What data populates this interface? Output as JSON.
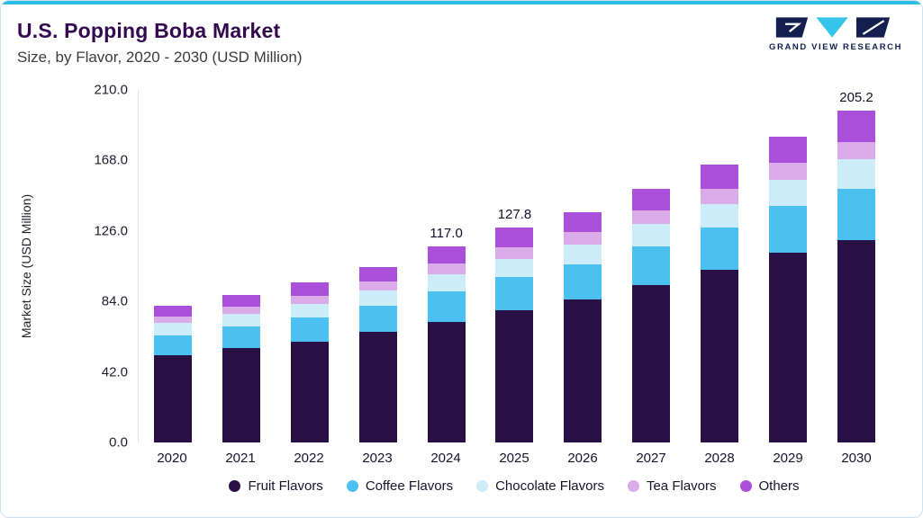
{
  "header": {
    "title": "U.S. Popping Boba Market",
    "subtitle": "Size, by Flavor, 2020 - 2030 (USD Million)",
    "logo_text": "GRAND VIEW RESEARCH"
  },
  "colors": {
    "accent": "#2bbbe3",
    "title": "#35094e",
    "logo_navy": "#13204f",
    "logo_cyan": "#35c4ea"
  },
  "chart_data": {
    "type": "bar",
    "stacked": true,
    "title": "U.S. Popping Boba Market Size, by Flavor, 2020 - 2030 (USD Million)",
    "xlabel": "",
    "ylabel": "Market Size (USD Million)",
    "ylim": [
      0,
      210
    ],
    "ytick_labels": [
      "0.0",
      "42.0",
      "84.0",
      "126.0",
      "168.0",
      "210.0"
    ],
    "grid": false,
    "legend_position": "bottom",
    "categories": [
      "2020",
      "2021",
      "2022",
      "2023",
      "2024",
      "2025",
      "2026",
      "2027",
      "2028",
      "2029",
      "2030"
    ],
    "series": [
      {
        "name": "Fruit Flavors",
        "color": "#2a1145",
        "values": [
          52,
          56,
          60,
          66,
          72,
          79,
          85,
          94,
          103,
          113,
          125
        ]
      },
      {
        "name": "Coffee Flavors",
        "color": "#4cc1f1",
        "values": [
          12,
          13,
          14.5,
          15.5,
          18,
          19.5,
          21,
          23,
          25,
          28,
          32
        ]
      },
      {
        "name": "Chocolate Flavors",
        "color": "#cdecf9",
        "values": [
          7,
          7.5,
          8,
          9,
          10,
          11,
          12,
          13,
          14,
          15.5,
          18
        ]
      },
      {
        "name": "Tea Flavors",
        "color": "#d9abe9",
        "values": [
          4,
          4.5,
          5,
          5.5,
          6.5,
          7,
          7.5,
          8,
          9,
          10,
          11
        ]
      },
      {
        "name": "Others",
        "color": "#aa4fd9",
        "values": [
          6.2,
          7,
          8,
          8.5,
          10.5,
          11.3,
          11.5,
          13,
          14.5,
          15.5,
          19.2
        ]
      }
    ],
    "annotations": {
      "2024": "117.0",
      "2025": "127.8",
      "2030": "205.2"
    }
  }
}
